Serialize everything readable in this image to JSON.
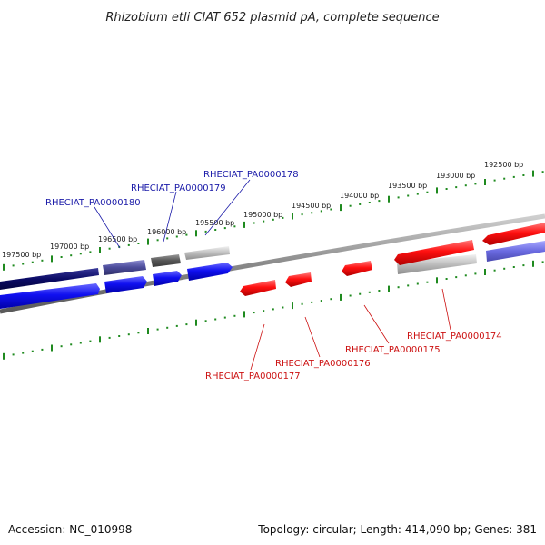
{
  "title": "Rhizobium etli CIAT 652 plasmid pA, complete sequence",
  "footer": {
    "accession": "Accession: NC_010998",
    "summary": "Topology: circular; Length: 414,090 bp; Genes: 381"
  },
  "colors": {
    "forward_label": "#1a1aa8",
    "reverse_label": "#cc1111",
    "tick": "#1f8a1f",
    "backbone": "#8a8a8a"
  },
  "ticks": [
    "197500 bp",
    "197000 bp",
    "196500 bp",
    "196000 bp",
    "195500 bp",
    "195000 bp",
    "194500 bp",
    "194000 bp",
    "193500 bp",
    "193000 bp",
    "192500 bp"
  ],
  "forward_labels": [
    "RHECIAT_PA0000180",
    "RHECIAT_PA0000179",
    "RHECIAT_PA0000178"
  ],
  "reverse_labels": [
    "RHECIAT_PA0000177",
    "RHECIAT_PA0000176",
    "RHECIAT_PA0000175",
    "RHECIAT_PA0000174"
  ]
}
